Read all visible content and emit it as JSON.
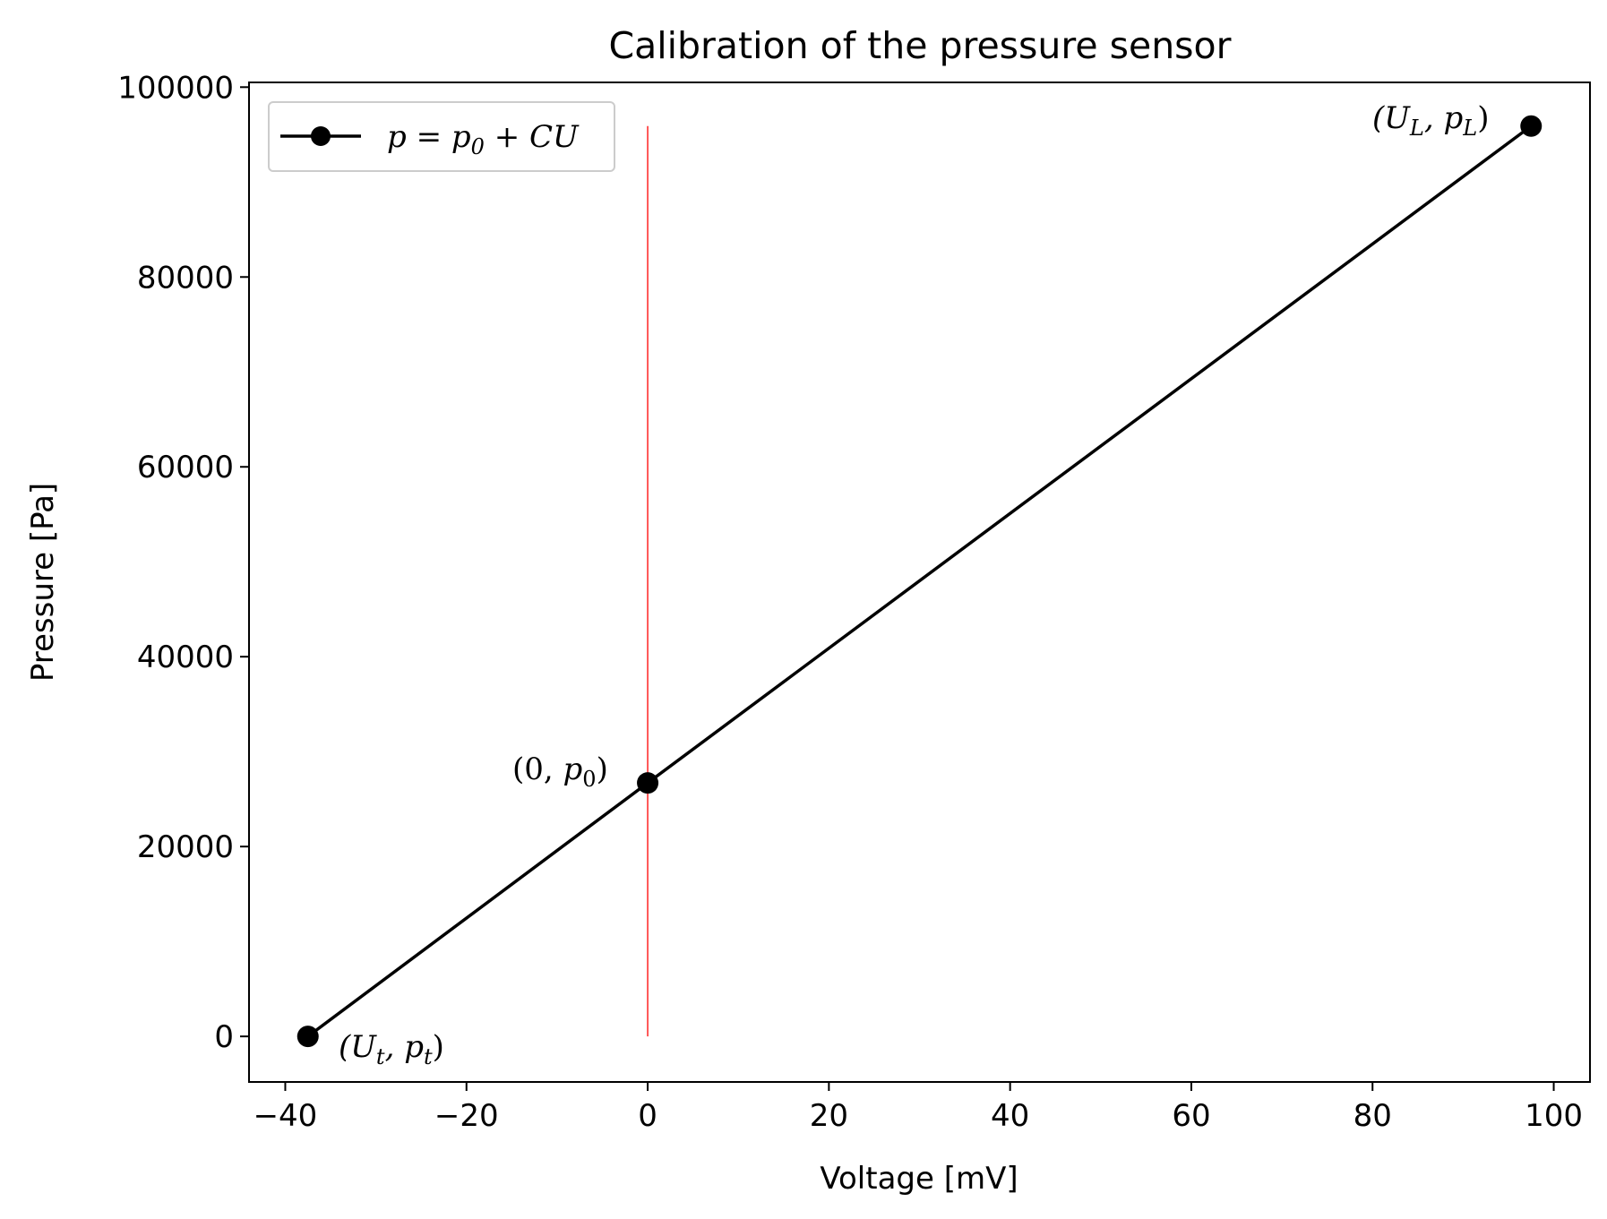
{
  "chart_data": {
    "type": "line",
    "title": "Calibration of the pressure sensor",
    "xlabel": "Voltage [mV]",
    "ylabel": "Pressure [Pa]",
    "xlim": [
      -44,
      104
    ],
    "ylim": [
      -4800,
      100500
    ],
    "xticks": [
      -40,
      -20,
      0,
      20,
      40,
      60,
      80,
      100
    ],
    "xtick_labels": [
      "−40",
      "−20",
      "0",
      "20",
      "40",
      "60",
      "80",
      "100"
    ],
    "yticks": [
      0,
      20000,
      40000,
      60000,
      80000,
      100000
    ],
    "ytick_labels": [
      "0",
      "20000",
      "40000",
      "60000",
      "80000",
      "100000"
    ],
    "grid": false,
    "legend_position": "top-left",
    "series": [
      {
        "name": "p = p0 + CU",
        "color": "#000000",
        "marker": "circle",
        "x": [
          -37.5,
          0,
          97.5
        ],
        "y": [
          0,
          26700,
          95900
        ]
      }
    ],
    "vline": {
      "x": 0,
      "y_range": [
        0,
        95900
      ],
      "color": "#ff0000"
    },
    "annotations": [
      {
        "text": "(Ut, pt)",
        "x": -37.5,
        "y": 0
      },
      {
        "text": "(0, p0)",
        "x": 0,
        "y": 26700
      },
      {
        "text": "(UL, pL)",
        "x": 97.5,
        "y": 95900
      }
    ]
  }
}
